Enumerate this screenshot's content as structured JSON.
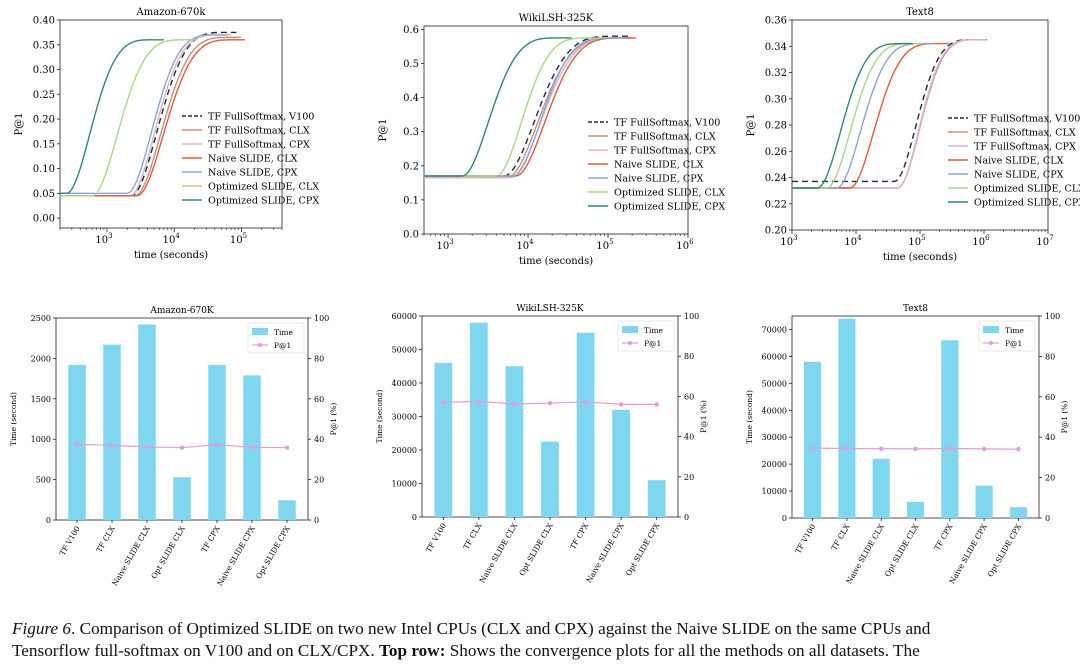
{
  "caption": {
    "label": "Figure 6",
    "line1": ". Comparison of Optimized SLIDE on two new Intel CPUs (CLX and CPX) against the Naive SLIDE on the same CPUs and",
    "line2a": "Tensorflow full-softmax on V100 and on CLX/CPX. ",
    "bold": "Top row:",
    "line2b": " Shows the convergence plots for all the methods on all datasets. The"
  },
  "series_styles": [
    {
      "name": "TF FullSoftmax, V100",
      "color": "#1f2a44",
      "dash": "6,4"
    },
    {
      "name": "TF FullSoftmax, CLX",
      "color": "#c89078",
      "dash": ""
    },
    {
      "name": "TF FullSoftmax, CPX",
      "color": "#d7b6c8",
      "dash": ""
    },
    {
      "name": "Naive SLIDE, CLX",
      "color": "#e25a3a",
      "dash": ""
    },
    {
      "name": "Naive SLIDE, CPX",
      "color": "#8aa6d8",
      "dash": ""
    },
    {
      "name": "Optimized SLIDE, CLX",
      "color": "#a8d888",
      "dash": ""
    },
    {
      "name": "Optimized SLIDE, CPX",
      "color": "#2e8b6a",
      "dash": ""
    }
  ],
  "bar_color": "#7fd6ef",
  "p1_color": "#e79ad8",
  "chart_data": [
    {
      "type": "line",
      "title": "Amazon-670k",
      "xlabel": "time (seconds)",
      "ylabel": "P@1",
      "xscale": "log",
      "xlim": [
        200,
        400000
      ],
      "ylim": [
        -0.02,
        0.4
      ],
      "xticks": [
        {
          "v": 1000,
          "e": "3"
        },
        {
          "v": 10000,
          "e": "4"
        },
        {
          "v": 100000,
          "e": "5"
        }
      ],
      "yticks": [
        "0.00",
        "0.05",
        "0.10",
        "0.15",
        "0.20",
        "0.25",
        "0.30",
        "0.35",
        "0.40"
      ],
      "legend": "right",
      "curves": [
        {
          "t0": 2300,
          "t1": 60000,
          "y0": 0.045,
          "y1": 0.375
        },
        {
          "t0": 2600,
          "t1": 70000,
          "y0": 0.045,
          "y1": 0.365
        },
        {
          "t0": 2200,
          "t1": 50000,
          "y0": 0.045,
          "y1": 0.37
        },
        {
          "t0": 2800,
          "t1": 80000,
          "y0": 0.045,
          "y1": 0.36
        },
        {
          "t0": 2000,
          "t1": 45000,
          "y0": 0.05,
          "y1": 0.37
        },
        {
          "t0": 600,
          "t1": 15000,
          "y0": 0.045,
          "y1": 0.36
        },
        {
          "t0": 250,
          "t1": 5000,
          "y0": 0.05,
          "y1": 0.36
        }
      ]
    },
    {
      "type": "line",
      "title": "WikiLSH-325K",
      "xlabel": "time (seconds)",
      "ylabel": "P@1",
      "xscale": "log",
      "xlim": [
        500,
        1000000
      ],
      "ylim": [
        0.0,
        0.61
      ],
      "xticks": [
        {
          "v": 1000,
          "e": "3"
        },
        {
          "v": 10000,
          "e": "4"
        },
        {
          "v": 100000,
          "e": "5"
        },
        {
          "v": 1000000,
          "e": "6"
        }
      ],
      "yticks": [
        "0.0",
        "0.1",
        "0.2",
        "0.3",
        "0.4",
        "0.5",
        "0.6"
      ],
      "legend": "right",
      "curves": [
        {
          "t0": 5000,
          "t1": 130000,
          "y0": 0.17,
          "y1": 0.58
        },
        {
          "t0": 5500,
          "t1": 140000,
          "y0": 0.165,
          "y1": 0.575
        },
        {
          "t0": 6000,
          "t1": 150000,
          "y0": 0.165,
          "y1": 0.575
        },
        {
          "t0": 7000,
          "t1": 160000,
          "y0": 0.17,
          "y1": 0.575
        },
        {
          "t0": 6500,
          "t1": 120000,
          "y0": 0.17,
          "y1": 0.575
        },
        {
          "t0": 4000,
          "t1": 60000,
          "y0": 0.17,
          "y1": 0.575
        },
        {
          "t0": 1500,
          "t1": 25000,
          "y0": 0.17,
          "y1": 0.575
        }
      ]
    },
    {
      "type": "line",
      "title": "Text8",
      "xlabel": "time (seconds)",
      "ylabel": "P@1",
      "xscale": "log",
      "xlim": [
        1000,
        10000000
      ],
      "ylim": [
        0.2,
        0.36
      ],
      "xticks": [
        {
          "v": 1000,
          "e": "3"
        },
        {
          "v": 10000,
          "e": "4"
        },
        {
          "v": 100000,
          "e": "5"
        },
        {
          "v": 1000000,
          "e": "6"
        },
        {
          "v": 10000000,
          "e": "7"
        }
      ],
      "yticks": [
        "0.20",
        "0.22",
        "0.24",
        "0.26",
        "0.28",
        "0.30",
        "0.32",
        "0.34",
        "0.36"
      ],
      "legend": "right",
      "curves": [
        {
          "t0": 40000,
          "t1": 700000,
          "y0": 0.237,
          "y1": 0.345
        },
        {
          "t0": 45000,
          "t1": 800000,
          "y0": 0.232,
          "y1": 0.345
        },
        {
          "t0": 45000,
          "t1": 750000,
          "y0": 0.232,
          "y1": 0.345
        },
        {
          "t0": 8000,
          "t1": 200000,
          "y0": 0.232,
          "y1": 0.342
        },
        {
          "t0": 5000,
          "t1": 120000,
          "y0": 0.232,
          "y1": 0.342
        },
        {
          "t0": 3500,
          "t1": 80000,
          "y0": 0.232,
          "y1": 0.342
        },
        {
          "t0": 2500,
          "t1": 55000,
          "y0": 0.232,
          "y1": 0.342
        }
      ]
    },
    {
      "type": "bar",
      "title": "Amazon-670K",
      "ylabel": "Time (second)",
      "y2label": "P@1 (%)",
      "categories": [
        "TF V100",
        "TF CLX",
        "Naive SLIDE CLX",
        "Opt SLIDE CLX",
        "TF CPX",
        "Naive SLIDE CPX",
        "Opt SLIDE CPX"
      ],
      "values": [
        1920,
        2170,
        2420,
        530,
        1920,
        1790,
        245
      ],
      "p1": [
        37.5,
        37.0,
        36.2,
        35.8,
        37.3,
        36.0,
        35.8
      ],
      "ylim": [
        0,
        2500
      ],
      "yticks": [
        "0",
        "500",
        "1000",
        "1500",
        "2000",
        "2500"
      ],
      "y2lim": [
        0,
        100
      ],
      "y2ticks": [
        "0",
        "20",
        "40",
        "60",
        "80",
        "100"
      ],
      "legend_labels": [
        "Time",
        "P@1"
      ]
    },
    {
      "type": "bar",
      "title": "WikiLSH-325K",
      "ylabel": "Time (second)",
      "y2label": "P@1 (%)",
      "categories": [
        "TF V100",
        "TF CLX",
        "Naive SLIDE CLX",
        "Opt SLIDE CLX",
        "TF CPX",
        "Naive SLIDE CPX",
        "Opt SLIDE CPX"
      ],
      "values": [
        46000,
        58000,
        45000,
        22500,
        55000,
        32000,
        11000
      ],
      "p1": [
        57.0,
        57.5,
        56.2,
        56.6,
        57.3,
        56.0,
        56.0
      ],
      "ylim": [
        0,
        60000
      ],
      "yticks": [
        "0",
        "10000",
        "20000",
        "30000",
        "40000",
        "50000",
        "60000"
      ],
      "y2lim": [
        0,
        100
      ],
      "y2ticks": [
        "0",
        "20",
        "40",
        "60",
        "80",
        "100"
      ],
      "legend_labels": [
        "Time",
        "P@1"
      ]
    },
    {
      "type": "bar",
      "title": "Text8",
      "ylabel": "Time (second)",
      "y2label": "P@1 (%)",
      "categories": [
        "TF V100",
        "TF CLX",
        "Naive SLIDE CLX",
        "Opt SLIDE CLX",
        "TF CPX",
        "Naive SLIDE CPX",
        "Opt SLIDE CPX"
      ],
      "values": [
        58000,
        74000,
        22000,
        6000,
        66000,
        12000,
        4000
      ],
      "p1": [
        34.6,
        34.4,
        34.3,
        34.2,
        34.4,
        34.2,
        34.1
      ],
      "ylim": [
        0,
        75000
      ],
      "yticks": [
        "0",
        "10000",
        "20000",
        "30000",
        "40000",
        "50000",
        "60000",
        "70000"
      ],
      "y2lim": [
        0,
        100
      ],
      "y2ticks": [
        "0",
        "20",
        "40",
        "60",
        "80",
        "100"
      ],
      "legend_labels": [
        "Time",
        "P@1"
      ]
    }
  ]
}
